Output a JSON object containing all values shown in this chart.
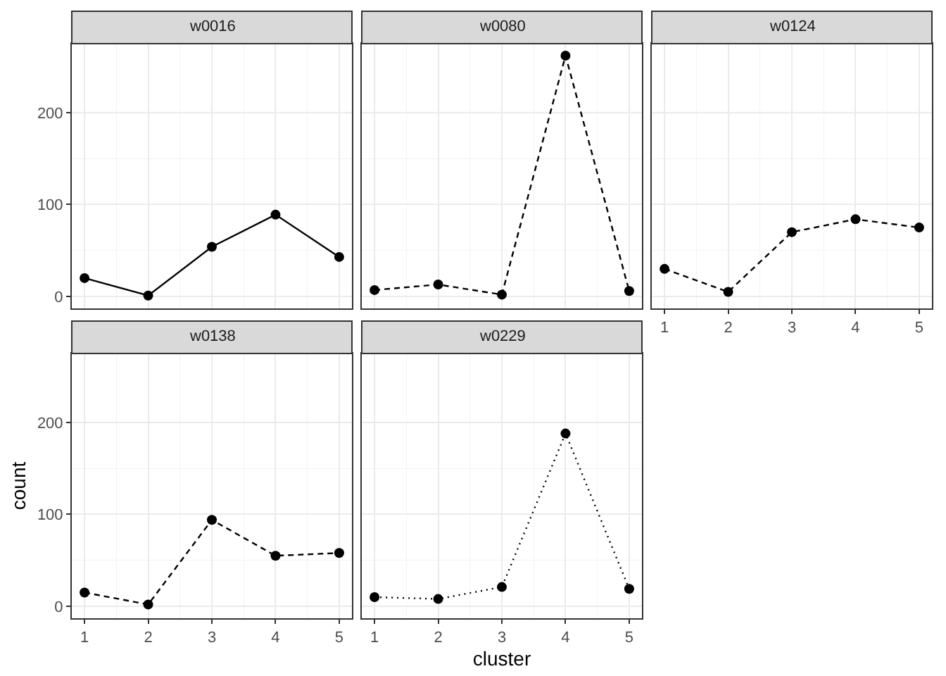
{
  "chart_data": [
    {
      "type": "line",
      "title": "w0016",
      "x": [
        1,
        2,
        3,
        4,
        5
      ],
      "xlim": [
        0.8,
        5.2
      ],
      "xticks": [
        1,
        2,
        3,
        4,
        5
      ],
      "ylim": [
        -13,
        275
      ],
      "yticks": [
        0,
        100,
        200
      ],
      "grid": true,
      "marker": "circle",
      "tick_labels": "y",
      "series": [
        {
          "color": "#000000",
          "line_style": "solid",
          "values": [
            20,
            1,
            54,
            89,
            43
          ]
        }
      ]
    },
    {
      "type": "line",
      "title": "w0080",
      "x": [
        1,
        2,
        3,
        4,
        5
      ],
      "xlim": [
        0.8,
        5.2
      ],
      "xticks": [
        1,
        2,
        3,
        4,
        5
      ],
      "ylim": [
        -13,
        275
      ],
      "yticks": [
        0,
        100,
        200
      ],
      "grid": true,
      "marker": "circle",
      "tick_labels": false,
      "series": [
        {
          "color": "#000000",
          "line_style": "dashed",
          "values": [
            7,
            13,
            2,
            262,
            6
          ]
        }
      ]
    },
    {
      "type": "line",
      "title": "w0124",
      "x": [
        1,
        2,
        3,
        4,
        5
      ],
      "xlim": [
        0.8,
        5.2
      ],
      "xticks": [
        1,
        2,
        3,
        4,
        5
      ],
      "ylim": [
        -13,
        275
      ],
      "yticks": [
        0,
        100,
        200
      ],
      "grid": true,
      "marker": "circle",
      "tick_labels": "x",
      "series": [
        {
          "color": "#000000",
          "line_style": "dashed",
          "values": [
            30,
            5,
            70,
            84,
            75
          ]
        }
      ]
    },
    {
      "type": "line",
      "title": "w0138",
      "ylabel": "count",
      "x": [
        1,
        2,
        3,
        4,
        5
      ],
      "xlim": [
        0.8,
        5.2
      ],
      "xticks": [
        1,
        2,
        3,
        4,
        5
      ],
      "ylim": [
        -13,
        275
      ],
      "yticks": [
        0,
        100,
        200
      ],
      "grid": true,
      "marker": "circle",
      "series": [
        {
          "color": "#000000",
          "line_style": "dashed",
          "values": [
            15,
            2,
            94,
            55,
            58
          ]
        }
      ]
    },
    {
      "type": "line",
      "title": "w0229",
      "xlabel": "cluster",
      "x": [
        1,
        2,
        3,
        4,
        5
      ],
      "xlim": [
        0.8,
        5.2
      ],
      "xticks": [
        1,
        2,
        3,
        4,
        5
      ],
      "ylim": [
        -13,
        275
      ],
      "yticks": [
        0,
        100,
        200
      ],
      "grid": true,
      "marker": "circle",
      "tick_labels": "x",
      "series": [
        {
          "color": "#000000",
          "line_style": "dotted",
          "values": [
            10,
            8,
            21,
            188,
            19
          ]
        }
      ]
    }
  ]
}
